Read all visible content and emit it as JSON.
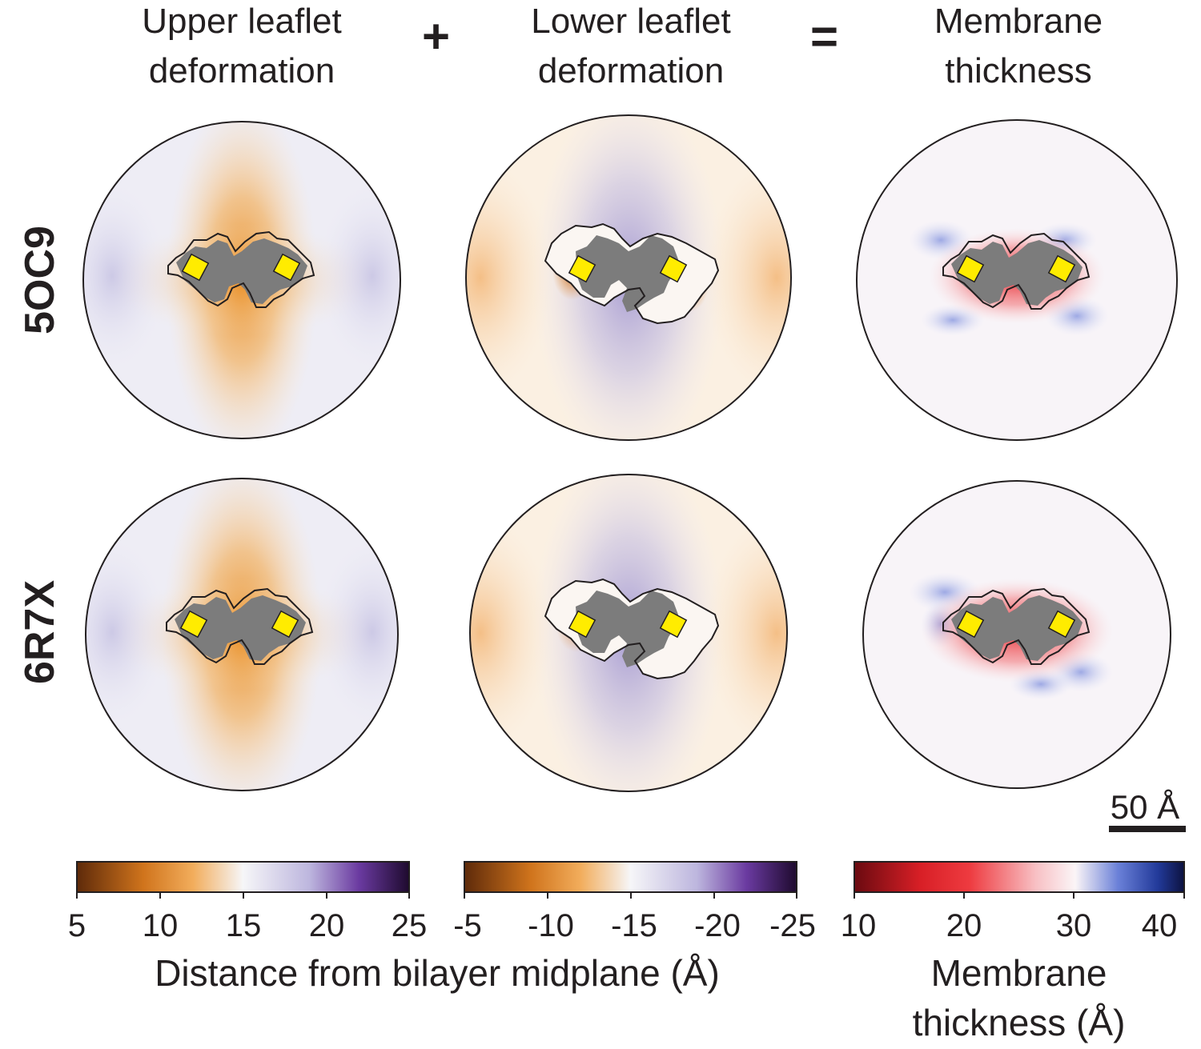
{
  "columns": [
    {
      "title_line1": "Upper leaflet",
      "title_line2": "deformation"
    },
    {
      "title_line1": "Lower leaflet",
      "title_line2": "deformation"
    },
    {
      "title_line1": "Membrane",
      "title_line2": "thickness"
    }
  ],
  "operators": {
    "plus": "+",
    "equals": "="
  },
  "rows": [
    {
      "label": "5OC9"
    },
    {
      "label": "6R7X"
    }
  ],
  "scale_bar": {
    "label": "50 Å"
  },
  "colorbars": [
    {
      "ticks": [
        "5",
        "10",
        "15",
        "20",
        "25"
      ],
      "colors": [
        "#6b2f0a",
        "#e8912a",
        "#fbd9a8",
        "#f6f6f8",
        "#c7c3e0",
        "#6a3aa0",
        "#1e0a2e"
      ]
    },
    {
      "ticks": [
        "-5",
        "-10",
        "-15",
        "-20",
        "-25"
      ],
      "colors": [
        "#6b2f0a",
        "#e8912a",
        "#fbd9a8",
        "#f6f6f8",
        "#c7c3e0",
        "#6a3aa0",
        "#1e0a2e"
      ]
    },
    {
      "ticks": [
        "10",
        "20",
        "30",
        "40"
      ],
      "colors": [
        "#7a0c12",
        "#e8242a",
        "#f7a5a8",
        "#fbf2f4",
        "#6a7fd8",
        "#1d3a9c",
        "#0d1240"
      ]
    }
  ],
  "colorbar_labels": {
    "distance": "Distance from bilayer midplane (Å)",
    "thickness_line1": "Membrane",
    "thickness_line2": "thickness (Å)"
  },
  "palette": {
    "protein_gray": "#7c7c7c",
    "marker_yellow": "#ffec00",
    "orange": "#ec9a3a",
    "purple": "#a79fd0",
    "red": "#e8242a",
    "blue": "#6a7fd8"
  }
}
